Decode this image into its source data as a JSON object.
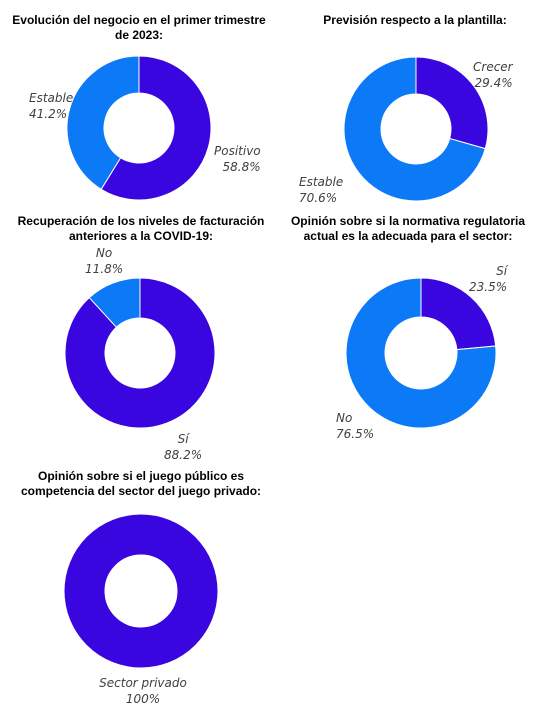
{
  "colors": {
    "purple": "#3a06df",
    "blue": "#0c79f6"
  },
  "chart_data": [
    {
      "type": "pie",
      "title": "Evolución del negocio en el primer trimestre de 2023:",
      "slices": [
        {
          "label": "Positivo",
          "value": 58.8,
          "display": "58.8%",
          "color": "#3a06df"
        },
        {
          "label": "Estable",
          "value": 41.2,
          "display": "41.2%",
          "color": "#0c79f6"
        }
      ]
    },
    {
      "type": "pie",
      "title": "Previsión respecto a la plantilla:",
      "slices": [
        {
          "label": "Crecer",
          "value": 29.4,
          "display": "29.4%",
          "color": "#3a06df"
        },
        {
          "label": "Estable",
          "value": 70.6,
          "display": "70.6%",
          "color": "#0c79f6"
        }
      ]
    },
    {
      "type": "pie",
      "title": "Recuperación de los niveles de facturación anteriores a la COVID-19:",
      "slices": [
        {
          "label": "Sí",
          "value": 88.2,
          "display": "88.2%",
          "color": "#3a06df"
        },
        {
          "label": "No",
          "value": 11.8,
          "display": "11.8%",
          "color": "#0c79f6"
        }
      ]
    },
    {
      "type": "pie",
      "title": "Opinión sobre si la normativa regulatoria actual es la adecuada para el sector:",
      "slices": [
        {
          "label": "Sí",
          "value": 23.5,
          "display": "23.5%",
          "color": "#3a06df"
        },
        {
          "label": "No",
          "value": 76.5,
          "display": "76.5%",
          "color": "#0c79f6"
        }
      ]
    },
    {
      "type": "pie",
      "title": "Opinión sobre si el juego público es competencia del sector del juego privado:",
      "slices": [
        {
          "label": "Sector privado",
          "value": 100,
          "display": "100%",
          "color": "#3a06df"
        }
      ]
    }
  ]
}
